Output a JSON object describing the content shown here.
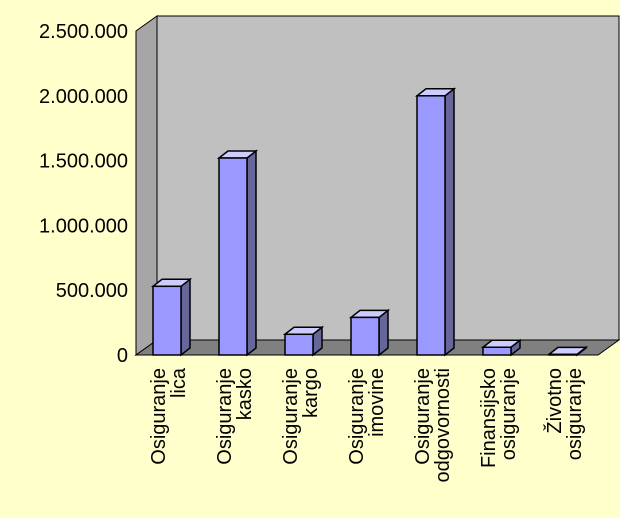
{
  "chart_data": {
    "type": "bar",
    "title": "",
    "xlabel": "",
    "ylabel": "",
    "ylim": [
      0,
      2500000
    ],
    "yticks": [
      0,
      500000,
      1000000,
      1500000,
      2000000,
      2500000
    ],
    "ytick_labels": [
      "0",
      "500.000",
      "1.000.000",
      "1.500.000",
      "2.000.000",
      "2.500.000"
    ],
    "categories": [
      [
        "Osiguranje",
        "lica"
      ],
      [
        "Osiguranje",
        "kasko"
      ],
      [
        "Osiguranje",
        "kargo"
      ],
      [
        "Osiguranje",
        "imovine"
      ],
      [
        "Osiguranje",
        "odgovornosti"
      ],
      [
        "Finansijsko",
        "osiguranje"
      ],
      [
        "Životno",
        "osiguranje"
      ]
    ],
    "values": [
      530000,
      1520000,
      160000,
      290000,
      2000000,
      60000,
      5000
    ],
    "grid": false,
    "legend": "none",
    "colors": {
      "background": "#ffffcc",
      "wall": "#c0c0c0",
      "side_wall": "#a6a6a6",
      "floor": "#808080",
      "bar_front": "#9999ff",
      "bar_top": "#ccccff",
      "bar_side": "#666699",
      "outline": "#000000"
    }
  }
}
